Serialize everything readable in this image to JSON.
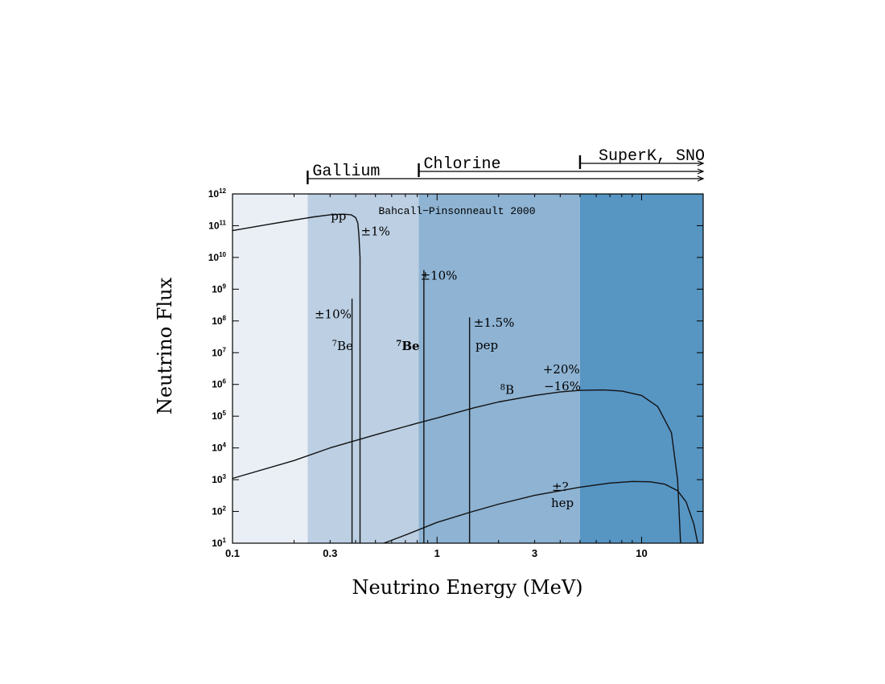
{
  "chart_data": {
    "type": "line",
    "title": "Bahcall−Pinsonneault 2000",
    "xlabel": "Neutrino Energy (MeV)",
    "ylabel": "Neutrino Flux",
    "x_scale": "log",
    "y_scale": "log",
    "xlim": [
      0.1,
      20
    ],
    "ylim": [
      10,
      1000000000000.0
    ],
    "x_ticks": [
      {
        "value": 0.1,
        "label": "0.1"
      },
      {
        "value": 0.3,
        "label": "0.3"
      },
      {
        "value": 1,
        "label": "1"
      },
      {
        "value": 3,
        "label": "3"
      },
      {
        "value": 10,
        "label": "10"
      }
    ],
    "y_ticks": [
      {
        "exp": 1,
        "base": "10",
        "sup": "1"
      },
      {
        "exp": 2,
        "base": "10",
        "sup": "2"
      },
      {
        "exp": 3,
        "base": "10",
        "sup": "3"
      },
      {
        "exp": 4,
        "base": "10",
        "sup": "4"
      },
      {
        "exp": 5,
        "base": "10",
        "sup": "5"
      },
      {
        "exp": 6,
        "base": "10",
        "sup": "6"
      },
      {
        "exp": 7,
        "base": "10",
        "sup": "7"
      },
      {
        "exp": 8,
        "base": "10",
        "sup": "8"
      },
      {
        "exp": 9,
        "base": "10",
        "sup": "9"
      },
      {
        "exp": 10,
        "base": "10",
        "sup": "10"
      },
      {
        "exp": 11,
        "base": "10",
        "sup": "11"
      },
      {
        "exp": 12,
        "base": "10",
        "sup": "12"
      }
    ],
    "regions": [
      {
        "x0": 0.1,
        "x1": 0.233,
        "color": "#eaeff6"
      },
      {
        "x0": 0.233,
        "x1": 0.814,
        "color": "#bccfe3"
      },
      {
        "x0": 0.814,
        "x1": 5,
        "color": "#8eb3d3"
      },
      {
        "x0": 5,
        "x1": 20,
        "color": "#5795c3"
      }
    ],
    "thresholds": [
      {
        "name": "Gallium",
        "x": 0.233
      },
      {
        "name": "Chlorine",
        "x": 0.814
      },
      {
        "name": "SuperK, SNO",
        "x": 5
      }
    ],
    "series": [
      {
        "name": "pp",
        "x": [
          0.1,
          0.15,
          0.2,
          0.25,
          0.3,
          0.35,
          0.38,
          0.4,
          0.41,
          0.415,
          0.42,
          0.42
        ],
        "y": [
          70000000000.0,
          110000000000.0,
          150000000000.0,
          190000000000.0,
          220000000000.0,
          230000000000.0,
          220000000000.0,
          180000000000.0,
          120000000000.0,
          50000000000.0,
          10000000000.0,
          10
        ]
      },
      {
        "name": "8B",
        "x": [
          0.1,
          0.2,
          0.3,
          0.5,
          0.8,
          1,
          1.5,
          2,
          3,
          4,
          5,
          6.5,
          8,
          10,
          12,
          14,
          15,
          15.5
        ],
        "y": [
          1100.0,
          4000.0,
          10000.0,
          26000.0,
          60000.0,
          88000.0,
          180000.0,
          280000.0,
          450000.0,
          580000.0,
          650000.0,
          670000.0,
          620000.0,
          450000.0,
          200000.0,
          30000.0,
          1000.0,
          10
        ]
      },
      {
        "name": "hep",
        "x": [
          0.55,
          0.7,
          1,
          1.5,
          2,
          3,
          5,
          7,
          9,
          11,
          13,
          15,
          16.5,
          18,
          18.8
        ],
        "y": [
          10,
          18,
          45,
          100,
          170,
          320,
          580,
          780,
          880,
          860,
          720,
          450,
          200,
          40,
          10
        ]
      }
    ],
    "lines": [
      {
        "name": "7Be 0.384",
        "x": 0.384,
        "y": 500000000.0
      },
      {
        "name": "7Be 0.862",
        "x": 0.862,
        "y": 4000000000.0
      },
      {
        "name": "pep",
        "x": 1.442,
        "y": 130000000.0
      }
    ],
    "annotations": [
      {
        "id": "pp",
        "text": "pp",
        "x": 0.33,
        "y": 150000000000.0
      },
      {
        "id": "pp-err",
        "text": "±1%",
        "x": 0.5,
        "y": 50000000000.0
      },
      {
        "id": "be7-low-err",
        "text": "±10%",
        "x": 0.31,
        "y": 120000000.0
      },
      {
        "id": "be7-low",
        "text": "Be",
        "sup": "7",
        "x": 0.345,
        "y": 12000000.0
      },
      {
        "id": "be7-high-err",
        "text": "±10%",
        "x": 1.02,
        "y": 2000000000.0
      },
      {
        "id": "be7-high",
        "text": "Be",
        "sup": "7",
        "x": 0.72,
        "y": 12000000.0
      },
      {
        "id": "pep-err",
        "text": "±1.5%",
        "x": 1.9,
        "y": 65000000.0
      },
      {
        "id": "pep",
        "text": "pep",
        "x": 1.75,
        "y": 13000000.0
      },
      {
        "id": "b8",
        "text": "B",
        "sup": "8",
        "x": 2.2,
        "y": 500000.0
      },
      {
        "id": "b8-err-up",
        "text": "+20%",
        "x": 4.05,
        "y": 2200000.0
      },
      {
        "id": "b8-err-down",
        "text": "−16%",
        "x": 4.1,
        "y": 650000.0
      },
      {
        "id": "hep-err",
        "text": "±?",
        "x": 4.0,
        "y": 450.0
      },
      {
        "id": "hep",
        "text": "hep",
        "x": 4.1,
        "y": 140.0
      }
    ]
  }
}
